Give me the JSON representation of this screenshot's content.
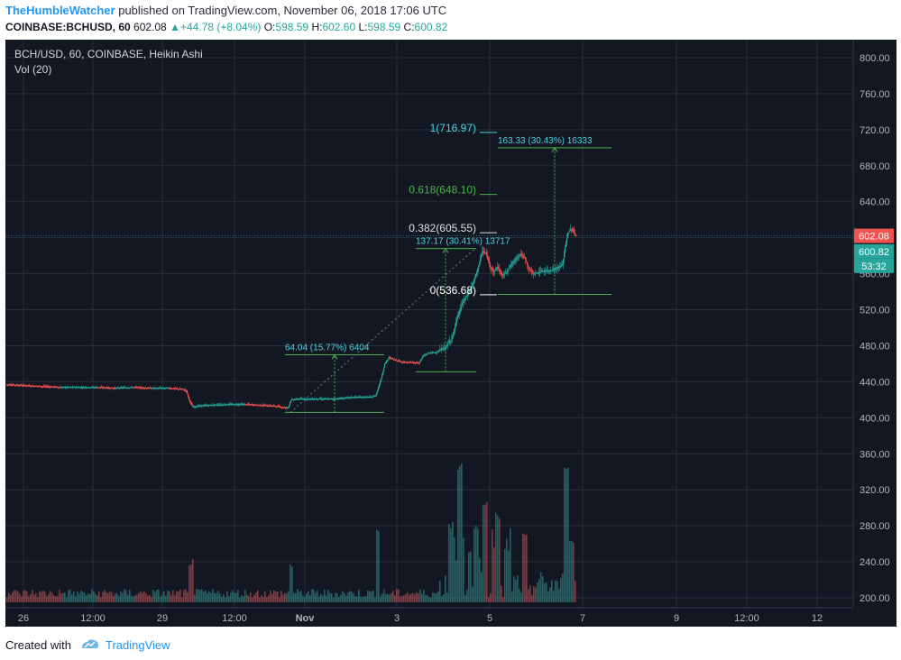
{
  "header": {
    "author": "TheHumbleWatcher",
    "published": "published on TradingView.com, November 06, 2018 17:06 UTC",
    "symbol": "COINBASE:BCHUSD, 60",
    "last": "602.08",
    "change": "+44.78 (+8.04%)",
    "o_label": "O:",
    "o": "598.59",
    "h_label": "H:",
    "h": "602.60",
    "l_label": "L:",
    "l": "598.59",
    "c_label": "C:",
    "c": "600.82"
  },
  "legend": {
    "title": "BCH/USD, 60, COINBASE, Heikin Ashi",
    "volume": "Vol (20)"
  },
  "colors": {
    "up": "#26a69a",
    "down": "#ef5350",
    "background": "#131722",
    "grid": "#2a2e39",
    "fib_1": "#4dd0e1",
    "fib_0618": "#4caf50",
    "fib_0382": "#e0e0e0",
    "fib_0": "#ffffff",
    "measure": "#4caf50"
  },
  "footer": {
    "created": "Created with",
    "brand": "TradingView",
    "icon": "tradingview-logo-icon"
  },
  "chart_data": {
    "type": "candlestick",
    "chart_style": "Heikin Ashi",
    "timeframe": "60",
    "ylim": [
      195,
      815
    ],
    "y_ticks": [
      "800.00",
      "760.00",
      "720.00",
      "680.00",
      "640.00",
      "600.00",
      "560.00",
      "520.00",
      "480.00",
      "440.00",
      "400.00",
      "360.00",
      "320.00",
      "280.00",
      "240.00",
      "200.00"
    ],
    "x_ticks": [
      "26",
      "12:00",
      "29",
      "12:00",
      "Nov",
      "3",
      "5",
      "7",
      "9",
      "12:00",
      "12"
    ],
    "price_labels": {
      "last": "602.08",
      "close": "600.82",
      "countdown": "53:32"
    },
    "price_path": [
      [
        0,
        437
      ],
      [
        20,
        436
      ],
      [
        40,
        435
      ],
      [
        60,
        434
      ],
      [
        80,
        434
      ],
      [
        100,
        434
      ],
      [
        120,
        433
      ],
      [
        140,
        434
      ],
      [
        160,
        433
      ],
      [
        180,
        433
      ],
      [
        195,
        432
      ],
      [
        200,
        430
      ],
      [
        203,
        420
      ],
      [
        207,
        412
      ],
      [
        212,
        413
      ],
      [
        225,
        414
      ],
      [
        245,
        415
      ],
      [
        265,
        415
      ],
      [
        285,
        414
      ],
      [
        300,
        413
      ],
      [
        310,
        411
      ],
      [
        313,
        412
      ],
      [
        316,
        420
      ],
      [
        325,
        421
      ],
      [
        345,
        421
      ],
      [
        365,
        421
      ],
      [
        385,
        423
      ],
      [
        405,
        423
      ],
      [
        410,
        425
      ],
      [
        415,
        440
      ],
      [
        420,
        460
      ],
      [
        425,
        467
      ],
      [
        430,
        465
      ],
      [
        440,
        462
      ],
      [
        458,
        461
      ],
      [
        462,
        468
      ],
      [
        468,
        472
      ],
      [
        478,
        473
      ],
      [
        488,
        479
      ],
      [
        495,
        490
      ],
      [
        500,
        510
      ],
      [
        507,
        530
      ],
      [
        512,
        537
      ],
      [
        518,
        550
      ],
      [
        523,
        565
      ],
      [
        528,
        585
      ],
      [
        532,
        583
      ],
      [
        537,
        568
      ],
      [
        541,
        562
      ],
      [
        545,
        568
      ],
      [
        550,
        558
      ],
      [
        553,
        560
      ],
      [
        560,
        570
      ],
      [
        565,
        576
      ],
      [
        570,
        582
      ],
      [
        575,
        578
      ],
      [
        580,
        565
      ],
      [
        585,
        560
      ],
      [
        595,
        563
      ],
      [
        605,
        564
      ],
      [
        612,
        567
      ],
      [
        617,
        570
      ],
      [
        620,
        590
      ],
      [
        623,
        605
      ],
      [
        627,
        610
      ],
      [
        632,
        602
      ]
    ],
    "volume_spikes": [
      [
        205,
        245
      ],
      [
        316,
        240
      ],
      [
        412,
        280
      ],
      [
        493,
        285
      ],
      [
        503,
        350
      ],
      [
        521,
        285
      ],
      [
        531,
        310
      ],
      [
        545,
        295
      ],
      [
        575,
        280
      ],
      [
        621,
        345
      ],
      [
        627,
        265
      ]
    ],
    "annotations": [
      {
        "kind": "fib",
        "label": "1(716.97)",
        "price": 716.97
      },
      {
        "kind": "fib",
        "label": "0.618(648.10)",
        "price": 648.1
      },
      {
        "kind": "fib",
        "label": "0.382(605.55)",
        "price": 605.55
      },
      {
        "kind": "fib",
        "label": "0(536.68)",
        "price": 536.68
      },
      {
        "kind": "range",
        "label": "64.04 (15.77%) 6404",
        "from": 406,
        "to": 470
      },
      {
        "kind": "range",
        "label": "137.17 (30.41%) 13717",
        "from": 451,
        "to": 588
      },
      {
        "kind": "range",
        "label": "163.33 (30.43%) 16333",
        "from": 537,
        "to": 700
      }
    ]
  }
}
